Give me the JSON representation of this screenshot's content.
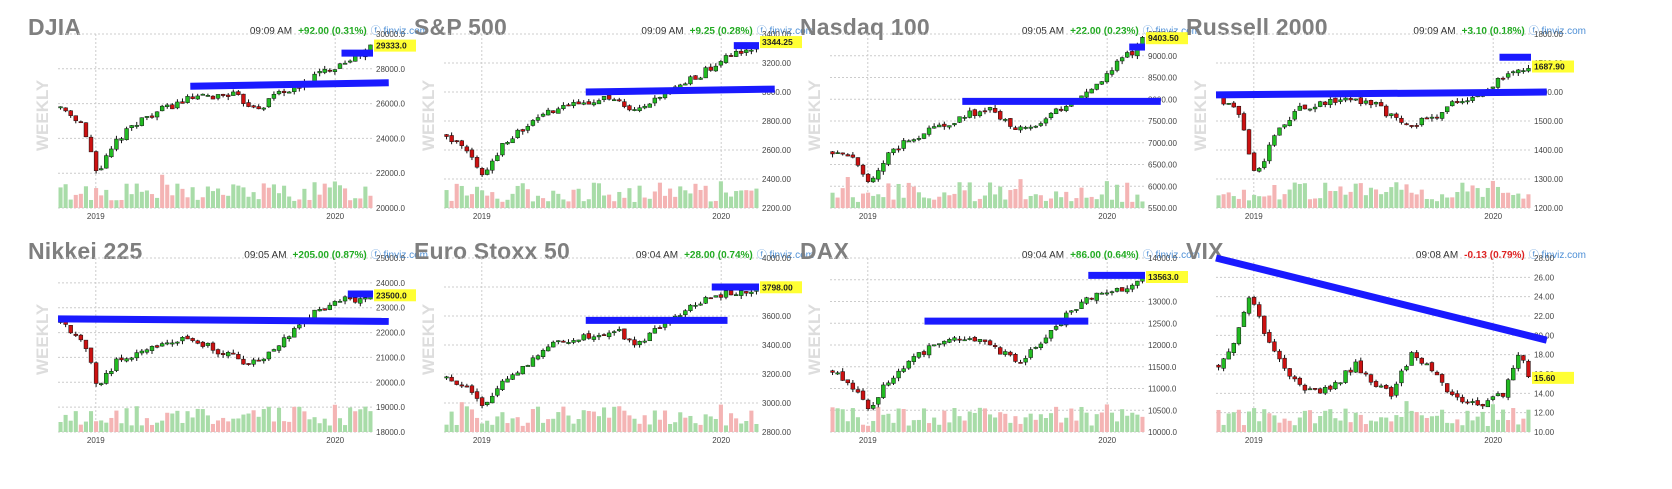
{
  "colors": {
    "up": "#22bb22",
    "down": "#cc1111",
    "trend": "#1a1aff",
    "vol_up": "#a8dca8",
    "vol_down": "#f4b4b4",
    "grid": "#cccccc",
    "price_highlight": "#ffff33",
    "positive": "#22aa22",
    "negative": "#dd2222"
  },
  "source_label": "finviz.com",
  "source_icon": "finviz-logo-icon",
  "chart_data": [
    {
      "type": "candlestick",
      "title": "DJIA",
      "time": "09:09 AM",
      "change": "+92.00 (0.31%)",
      "change_dir": "up",
      "last": "29333.0",
      "yticks": [
        "30000.0",
        "28000.0",
        "26000.0",
        "24000.0",
        "22000.0",
        "20000.0"
      ],
      "ylim": [
        20000,
        30000
      ],
      "xticks": [
        "2019",
        "2020"
      ],
      "watermark": "WEEKLY",
      "anchors": [
        [
          0,
          25800
        ],
        [
          0.07,
          24800
        ],
        [
          0.12,
          22000
        ],
        [
          0.18,
          23800
        ],
        [
          0.25,
          25000
        ],
        [
          0.32,
          25600
        ],
        [
          0.42,
          26300
        ],
        [
          0.5,
          26400
        ],
        [
          0.55,
          26600
        ],
        [
          0.6,
          26000
        ],
        [
          0.65,
          25800
        ],
        [
          0.7,
          26700
        ],
        [
          0.76,
          26800
        ],
        [
          0.82,
          27600
        ],
        [
          0.88,
          28100
        ],
        [
          0.93,
          28600
        ],
        [
          0.97,
          28800
        ],
        [
          1.0,
          29300
        ]
      ],
      "trend_lines": [
        [
          [
            0.42,
            27000
          ],
          [
            1.05,
            27200
          ]
        ],
        [
          [
            0.9,
            28900
          ],
          [
            1.0,
            28900
          ]
        ]
      ]
    },
    {
      "type": "candlestick",
      "title": "S&P 500",
      "time": "09:09 AM",
      "change": "+9.25 (0.28%)",
      "change_dir": "up",
      "last": "3344.25",
      "yticks": [
        "3400.00",
        "3200.00",
        "3000.00",
        "2800.00",
        "2600.00",
        "2400.00",
        "2200.00"
      ],
      "ylim": [
        2200,
        3400
      ],
      "xticks": [
        "2019",
        "2020"
      ],
      "watermark": "WEEKLY",
      "anchors": [
        [
          0,
          2700
        ],
        [
          0.07,
          2600
        ],
        [
          0.12,
          2400
        ],
        [
          0.18,
          2650
        ],
        [
          0.25,
          2750
        ],
        [
          0.32,
          2850
        ],
        [
          0.42,
          2920
        ],
        [
          0.5,
          2960
        ],
        [
          0.55,
          2930
        ],
        [
          0.6,
          2850
        ],
        [
          0.65,
          2900
        ],
        [
          0.7,
          2980
        ],
        [
          0.76,
          3050
        ],
        [
          0.82,
          3120
        ],
        [
          0.88,
          3210
        ],
        [
          0.93,
          3260
        ],
        [
          0.97,
          3280
        ],
        [
          1.0,
          3340
        ]
      ],
      "trend_lines": [
        [
          [
            0.45,
            3000
          ],
          [
            1.05,
            3020
          ]
        ],
        [
          [
            0.92,
            3320
          ],
          [
            1.0,
            3320
          ]
        ]
      ]
    },
    {
      "type": "candlestick",
      "title": "Nasdaq 100",
      "time": "09:05 AM",
      "change": "+22.00 (0.23%)",
      "change_dir": "up",
      "last": "9403.50",
      "yticks": [
        "9500.00",
        "9000.00",
        "8500.00",
        "8000.00",
        "7500.00",
        "7000.00",
        "6500.00",
        "6000.00",
        "5500.00"
      ],
      "ylim": [
        5500,
        9500
      ],
      "xticks": [
        "2019",
        "2020"
      ],
      "watermark": "WEEKLY",
      "anchors": [
        [
          0,
          6800
        ],
        [
          0.07,
          6600
        ],
        [
          0.12,
          6100
        ],
        [
          0.18,
          6700
        ],
        [
          0.25,
          7100
        ],
        [
          0.32,
          7300
        ],
        [
          0.42,
          7600
        ],
        [
          0.5,
          7800
        ],
        [
          0.55,
          7500
        ],
        [
          0.6,
          7300
        ],
        [
          0.65,
          7400
        ],
        [
          0.7,
          7600
        ],
        [
          0.76,
          7900
        ],
        [
          0.82,
          8200
        ],
        [
          0.88,
          8500
        ],
        [
          0.93,
          8900
        ],
        [
          0.97,
          9100
        ],
        [
          1.0,
          9400
        ]
      ],
      "trend_lines": [
        [
          [
            0.42,
            7950
          ],
          [
            1.05,
            7950
          ]
        ],
        [
          [
            0.95,
            9200
          ],
          [
            1.0,
            9200
          ]
        ]
      ]
    },
    {
      "type": "candlestick",
      "title": "Russell 2000",
      "time": "09:09 AM",
      "change": "+3.10 (0.18%)",
      "change_dir": "up",
      "last": "1687.90",
      "yticks": [
        "1800.00",
        "1700.00",
        "1600.00",
        "1500.00",
        "1400.00",
        "1300.00",
        "1200.00"
      ],
      "ylim": [
        1200,
        1800
      ],
      "xticks": [
        "2019",
        "2020"
      ],
      "watermark": "WEEKLY",
      "anchors": [
        [
          0,
          1580
        ],
        [
          0.07,
          1520
        ],
        [
          0.12,
          1300
        ],
        [
          0.18,
          1450
        ],
        [
          0.25,
          1540
        ],
        [
          0.32,
          1560
        ],
        [
          0.42,
          1580
        ],
        [
          0.5,
          1560
        ],
        [
          0.55,
          1520
        ],
        [
          0.6,
          1480
        ],
        [
          0.65,
          1500
        ],
        [
          0.7,
          1520
        ],
        [
          0.76,
          1560
        ],
        [
          0.82,
          1580
        ],
        [
          0.88,
          1620
        ],
        [
          0.93,
          1660
        ],
        [
          0.97,
          1680
        ],
        [
          1.0,
          1690
        ]
      ],
      "trend_lines": [
        [
          [
            0,
            1590
          ],
          [
            1.05,
            1600
          ]
        ],
        [
          [
            0.9,
            1720
          ],
          [
            1.0,
            1720
          ]
        ]
      ]
    },
    {
      "type": "candlestick",
      "title": "Nikkei 225",
      "time": "09:05 AM",
      "change": "+205.00 (0.87%)",
      "change_dir": "up",
      "last": "23500.0",
      "yticks": [
        "25000.0",
        "24000.0",
        "23000.0",
        "22000.0",
        "21000.0",
        "20000.0",
        "19000.0",
        "18000.0"
      ],
      "ylim": [
        18000,
        25000
      ],
      "xticks": [
        "2019",
        "2020"
      ],
      "watermark": "WEEKLY",
      "anchors": [
        [
          0,
          22400
        ],
        [
          0.07,
          21800
        ],
        [
          0.12,
          19800
        ],
        [
          0.18,
          20800
        ],
        [
          0.25,
          21200
        ],
        [
          0.32,
          21500
        ],
        [
          0.42,
          21800
        ],
        [
          0.5,
          21300
        ],
        [
          0.55,
          21100
        ],
        [
          0.6,
          20700
        ],
        [
          0.65,
          20900
        ],
        [
          0.7,
          21500
        ],
        [
          0.76,
          22200
        ],
        [
          0.82,
          22800
        ],
        [
          0.88,
          23200
        ],
        [
          0.93,
          23400
        ],
        [
          0.97,
          23300
        ],
        [
          1.0,
          23500
        ]
      ],
      "trend_lines": [
        [
          [
            0,
            22550
          ],
          [
            1.05,
            22450
          ]
        ],
        [
          [
            0.92,
            23550
          ],
          [
            1.0,
            23550
          ]
        ]
      ]
    },
    {
      "type": "candlestick",
      "title": "Euro Stoxx 50",
      "time": "09:04 AM",
      "change": "+28.00 (0.74%)",
      "change_dir": "up",
      "last": "3798.00",
      "yticks": [
        "4000.00",
        "3800.00",
        "3600.00",
        "3400.00",
        "3200.00",
        "3000.00",
        "2800.00"
      ],
      "ylim": [
        2800,
        4000
      ],
      "xticks": [
        "2019",
        "2020"
      ],
      "watermark": "WEEKLY",
      "anchors": [
        [
          0,
          3180
        ],
        [
          0.07,
          3100
        ],
        [
          0.12,
          2950
        ],
        [
          0.18,
          3150
        ],
        [
          0.25,
          3250
        ],
        [
          0.32,
          3380
        ],
        [
          0.42,
          3450
        ],
        [
          0.5,
          3480
        ],
        [
          0.55,
          3500
        ],
        [
          0.6,
          3400
        ],
        [
          0.65,
          3450
        ],
        [
          0.7,
          3550
        ],
        [
          0.76,
          3620
        ],
        [
          0.82,
          3700
        ],
        [
          0.88,
          3750
        ],
        [
          0.93,
          3760
        ],
        [
          0.97,
          3780
        ],
        [
          1.0,
          3800
        ]
      ],
      "trend_lines": [
        [
          [
            0.45,
            3570
          ],
          [
            0.9,
            3570
          ]
        ],
        [
          [
            0.85,
            3800
          ],
          [
            1.0,
            3800
          ]
        ]
      ]
    },
    {
      "type": "candlestick",
      "title": "DAX",
      "time": "09:04 AM",
      "change": "+86.00 (0.64%)",
      "change_dir": "up",
      "last": "13563.0",
      "yticks": [
        "14000.0",
        "13500.0",
        "13000.0",
        "12500.0",
        "12000.0",
        "11500.0",
        "11000.0",
        "10500.0",
        "10000.0"
      ],
      "ylim": [
        10000,
        14000
      ],
      "xticks": [
        "2019",
        "2020"
      ],
      "watermark": "WEEKLY",
      "anchors": [
        [
          0,
          11400
        ],
        [
          0.07,
          11000
        ],
        [
          0.12,
          10500
        ],
        [
          0.18,
          11200
        ],
        [
          0.25,
          11600
        ],
        [
          0.32,
          12000
        ],
        [
          0.42,
          12200
        ],
        [
          0.5,
          12100
        ],
        [
          0.55,
          11800
        ],
        [
          0.6,
          11600
        ],
        [
          0.65,
          11900
        ],
        [
          0.7,
          12300
        ],
        [
          0.76,
          12700
        ],
        [
          0.82,
          13100
        ],
        [
          0.88,
          13200
        ],
        [
          0.93,
          13300
        ],
        [
          0.97,
          13400
        ],
        [
          1.0,
          13560
        ]
      ],
      "trend_lines": [
        [
          [
            0.3,
            12550
          ],
          [
            0.82,
            12550
          ]
        ],
        [
          [
            0.82,
            13600
          ],
          [
            1.0,
            13600
          ]
        ]
      ]
    },
    {
      "type": "candlestick",
      "title": "VIX",
      "time": "09:08 AM",
      "change": "-0.13 (0.79%)",
      "change_dir": "down",
      "last": "15.60",
      "yticks": [
        "28.00",
        "26.00",
        "24.00",
        "22.00",
        "20.00",
        "18.00",
        "16.00",
        "14.00",
        "12.00",
        "10.00"
      ],
      "ylim": [
        10,
        28
      ],
      "xticks": [
        "2019",
        "2020"
      ],
      "watermark": "",
      "anchors": [
        [
          0,
          17
        ],
        [
          0.05,
          19
        ],
        [
          0.1,
          24
        ],
        [
          0.14,
          21
        ],
        [
          0.2,
          17
        ],
        [
          0.25,
          15
        ],
        [
          0.32,
          14
        ],
        [
          0.38,
          15
        ],
        [
          0.44,
          17
        ],
        [
          0.5,
          15
        ],
        [
          0.56,
          14
        ],
        [
          0.62,
          18
        ],
        [
          0.68,
          17
        ],
        [
          0.74,
          14
        ],
        [
          0.8,
          13
        ],
        [
          0.86,
          13
        ],
        [
          0.92,
          14
        ],
        [
          0.97,
          18
        ],
        [
          1.0,
          16
        ]
      ],
      "trend_lines": [
        [
          [
            0,
            28
          ],
          [
            1.05,
            19.5
          ]
        ]
      ]
    }
  ]
}
